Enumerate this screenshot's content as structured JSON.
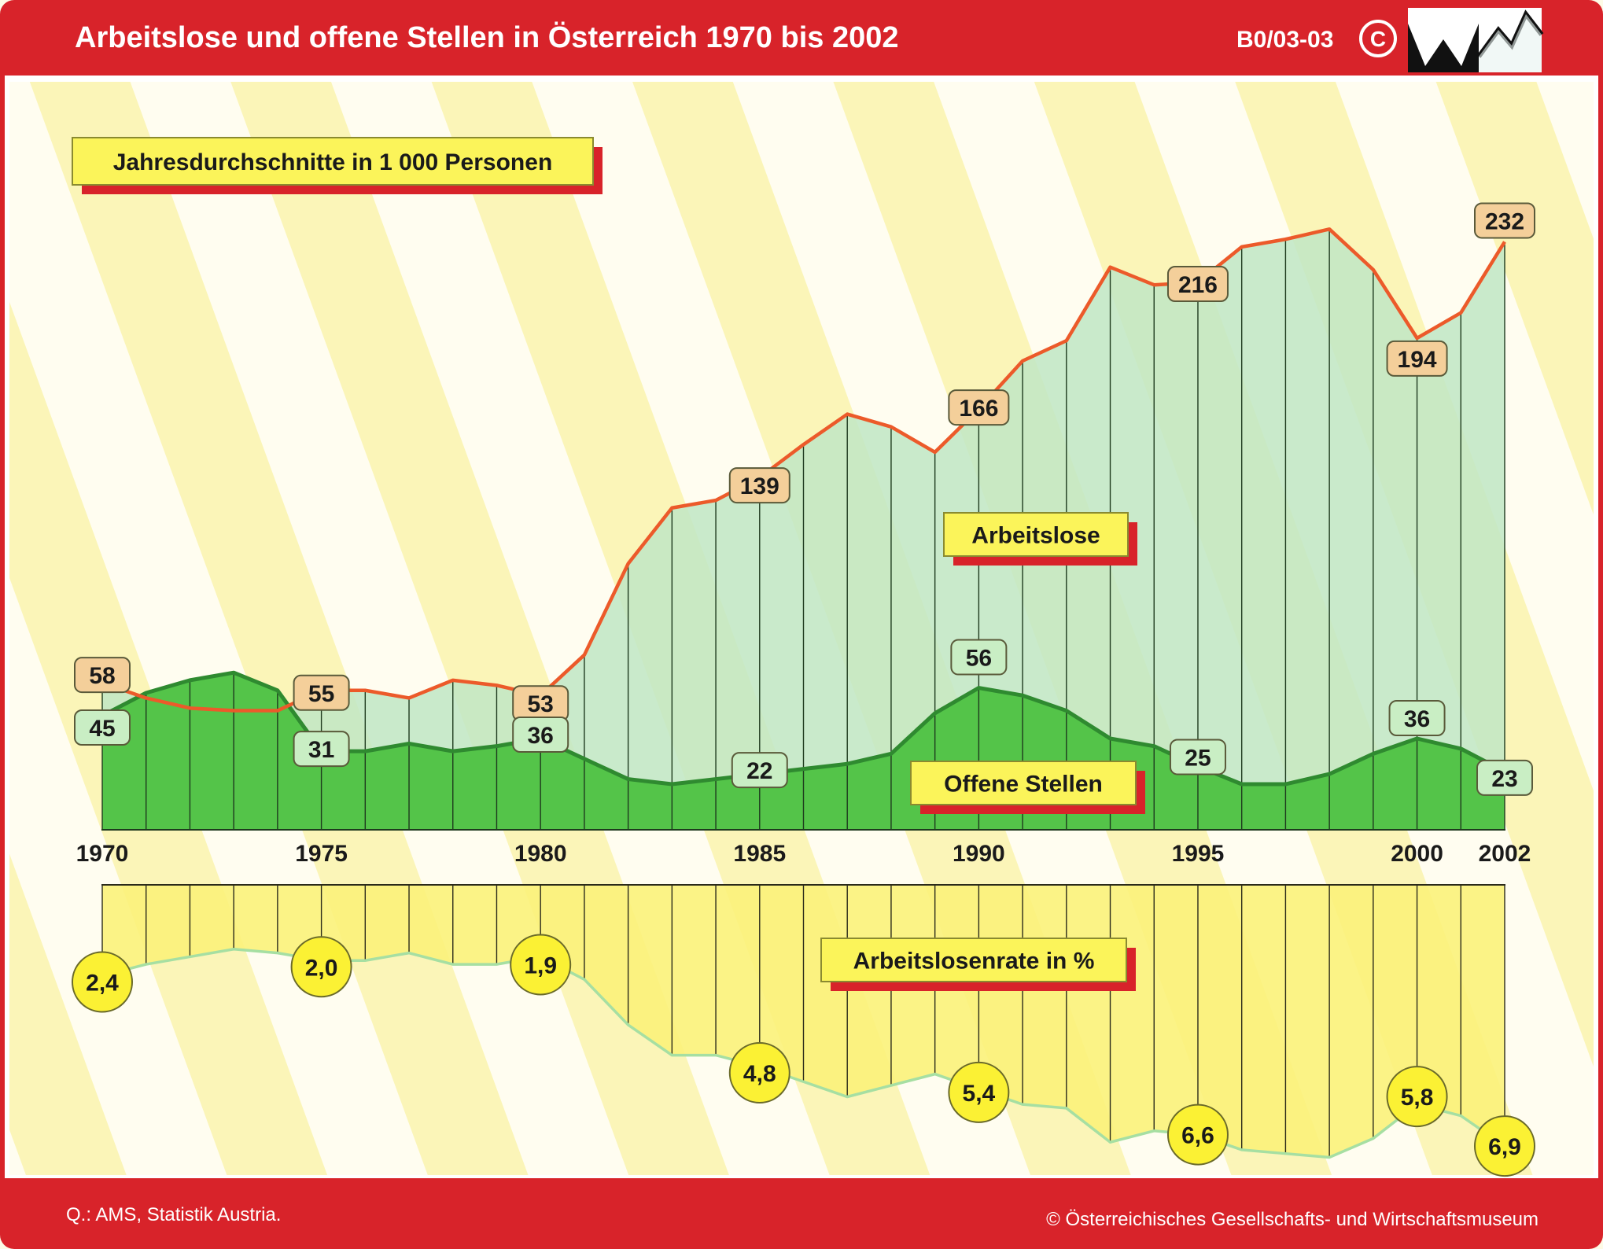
{
  "header": {
    "title": "Arbeitslose und offene Stellen in Österreich 1970 bis 2002",
    "code": "B0/03-03",
    "copyright_symbol": "©",
    "logo_icon": "wm-museum-logo"
  },
  "footer": {
    "source": "Q.: AMS, Statistik Austria.",
    "publisher": "© Österreichisches Gesellschafts- und Wirtschaftsmuseum"
  },
  "colors": {
    "frame_red": "#d8232a",
    "unemployed_line": "#ec5a2a",
    "unemployed_fill": "#bfe6c4",
    "vacancies_fill": "#54c449",
    "vacancies_line": "#2f8a30",
    "rate_fill": "#fbf27a",
    "rate_line": "#a6dfa2",
    "label_box_yellow": "#fbf45a",
    "label_shadow_red": "#d8232a",
    "tan_box": "#f4cf9a",
    "green_box": "#c9eec4",
    "circle_yellow": "#fbf134"
  },
  "chart_data": [
    {
      "type": "area",
      "title": "Jahresdurchschnitte in 1 000 Personen",
      "x": [
        1970,
        1971,
        1972,
        1973,
        1974,
        1975,
        1976,
        1977,
        1978,
        1979,
        1980,
        1981,
        1982,
        1983,
        1984,
        1985,
        1986,
        1987,
        1988,
        1989,
        1990,
        1991,
        1992,
        1993,
        1994,
        1995,
        1996,
        1997,
        1998,
        1999,
        2000,
        2001,
        2002
      ],
      "xlim": [
        1970,
        2002
      ],
      "x_tick_labels": [
        "1970",
        "1975",
        "1980",
        "1985",
        "1990",
        "1995",
        "2000",
        "2002"
      ],
      "ylim": [
        0,
        270
      ],
      "series": [
        {
          "name": "Arbeitslose",
          "values": [
            58,
            52,
            48,
            47,
            47,
            55,
            55,
            52,
            59,
            57,
            53,
            69,
            105,
            127,
            130,
            139,
            152,
            164,
            159,
            149,
            166,
            185,
            193,
            222,
            215,
            216,
            230,
            233,
            237,
            221,
            194,
            204,
            232
          ]
        },
        {
          "name": "Offene Stellen",
          "values": [
            45,
            54,
            59,
            62,
            55,
            31,
            31,
            34,
            31,
            33,
            36,
            28,
            20,
            18,
            20,
            22,
            24,
            26,
            30,
            46,
            56,
            53,
            47,
            36,
            33,
            25,
            18,
            18,
            22,
            30,
            36,
            32,
            23
          ]
        }
      ],
      "point_labels": {
        "Arbeitslose": [
          {
            "x": 1970,
            "label": "58"
          },
          {
            "x": 1975,
            "label": "55"
          },
          {
            "x": 1980,
            "label": "53"
          },
          {
            "x": 1985,
            "label": "139"
          },
          {
            "x": 1990,
            "label": "166"
          },
          {
            "x": 1995,
            "label": "216"
          },
          {
            "x": 2000,
            "label": "194"
          },
          {
            "x": 2002,
            "label": "232"
          }
        ],
        "Offene Stellen": [
          {
            "x": 1970,
            "label": "45"
          },
          {
            "x": 1975,
            "label": "31"
          },
          {
            "x": 1980,
            "label": "36"
          },
          {
            "x": 1985,
            "label": "22"
          },
          {
            "x": 1990,
            "label": "56"
          },
          {
            "x": 1995,
            "label": "25"
          },
          {
            "x": 2000,
            "label": "36"
          },
          {
            "x": 2002,
            "label": "23"
          }
        ]
      },
      "series_label_texts": {
        "Arbeitslose": "Arbeitslose",
        "Offene Stellen": "Offene Stellen"
      }
    },
    {
      "type": "area",
      "title": "Arbeitslosenrate in %",
      "x": [
        1970,
        1971,
        1972,
        1973,
        1974,
        1975,
        1976,
        1977,
        1978,
        1979,
        1980,
        1981,
        1982,
        1983,
        1984,
        1985,
        1986,
        1987,
        1988,
        1989,
        1990,
        1991,
        1992,
        1993,
        1994,
        1995,
        1996,
        1997,
        1998,
        1999,
        2000,
        2001,
        2002
      ],
      "xlim": [
        1970,
        2002
      ],
      "ylim": [
        0,
        8
      ],
      "inverted": true,
      "series": [
        {
          "name": "Arbeitslosenrate",
          "values": [
            2.4,
            2.1,
            1.9,
            1.7,
            1.8,
            2.0,
            2.0,
            1.8,
            2.1,
            2.1,
            1.9,
            2.5,
            3.7,
            4.5,
            4.5,
            4.8,
            5.2,
            5.6,
            5.3,
            5.0,
            5.4,
            5.8,
            5.9,
            6.8,
            6.5,
            6.6,
            7.0,
            7.1,
            7.2,
            6.7,
            5.8,
            6.1,
            6.9
          ]
        }
      ],
      "point_labels": [
        {
          "x": 1970,
          "label": "2,4"
        },
        {
          "x": 1975,
          "label": "2,0"
        },
        {
          "x": 1980,
          "label": "1,9"
        },
        {
          "x": 1985,
          "label": "4,8"
        },
        {
          "x": 1990,
          "label": "5,4"
        },
        {
          "x": 1995,
          "label": "6,6"
        },
        {
          "x": 2000,
          "label": "5,8"
        },
        {
          "x": 2002,
          "label": "6,9"
        }
      ]
    }
  ]
}
